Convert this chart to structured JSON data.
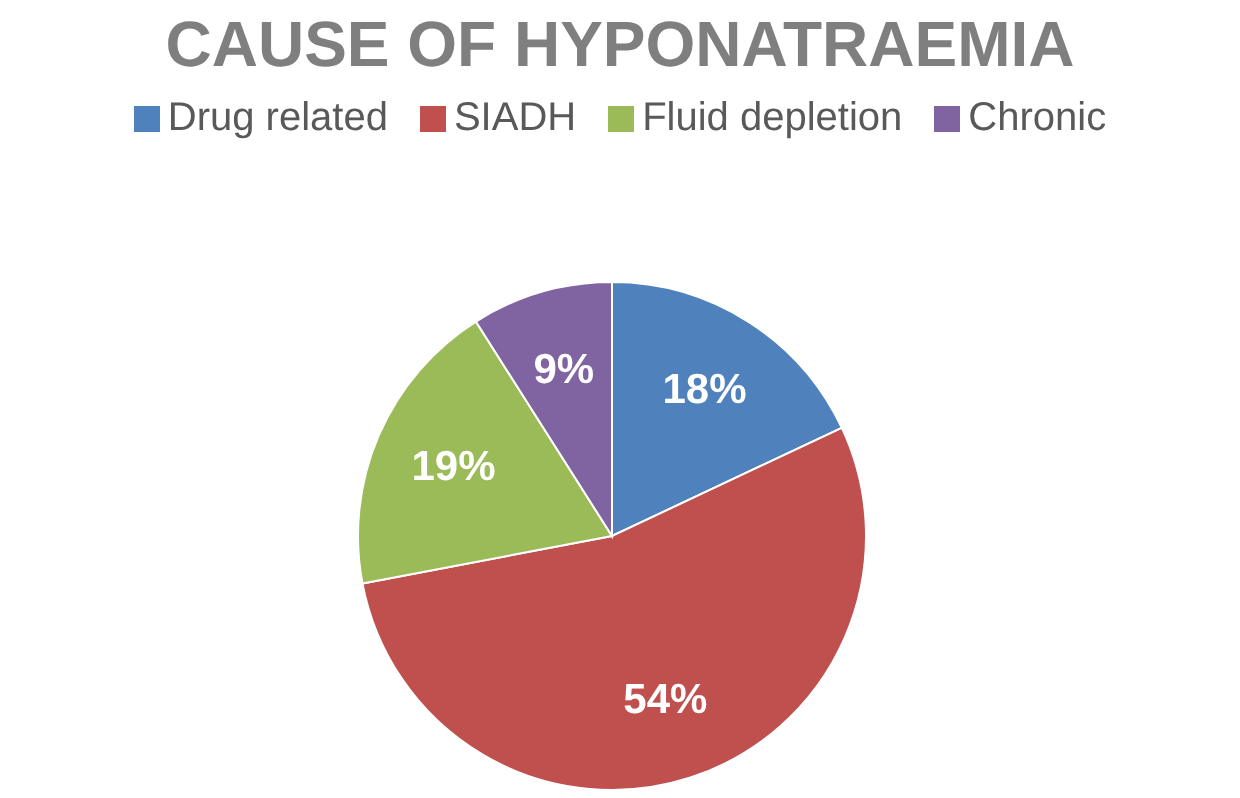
{
  "chart_data": {
    "type": "pie",
    "title": "CAUSE OF HYPONATRAEMIA",
    "categories": [
      "Drug related",
      "SIADH",
      "Fluid depletion",
      "Chronic"
    ],
    "values": [
      18,
      54,
      19,
      9
    ],
    "colors": [
      "#4f81bd",
      "#c0504d",
      "#9bbb59",
      "#8064a2"
    ],
    "value_labels": [
      "18%",
      "54%",
      "19%",
      "9%"
    ],
    "legend": "top"
  }
}
